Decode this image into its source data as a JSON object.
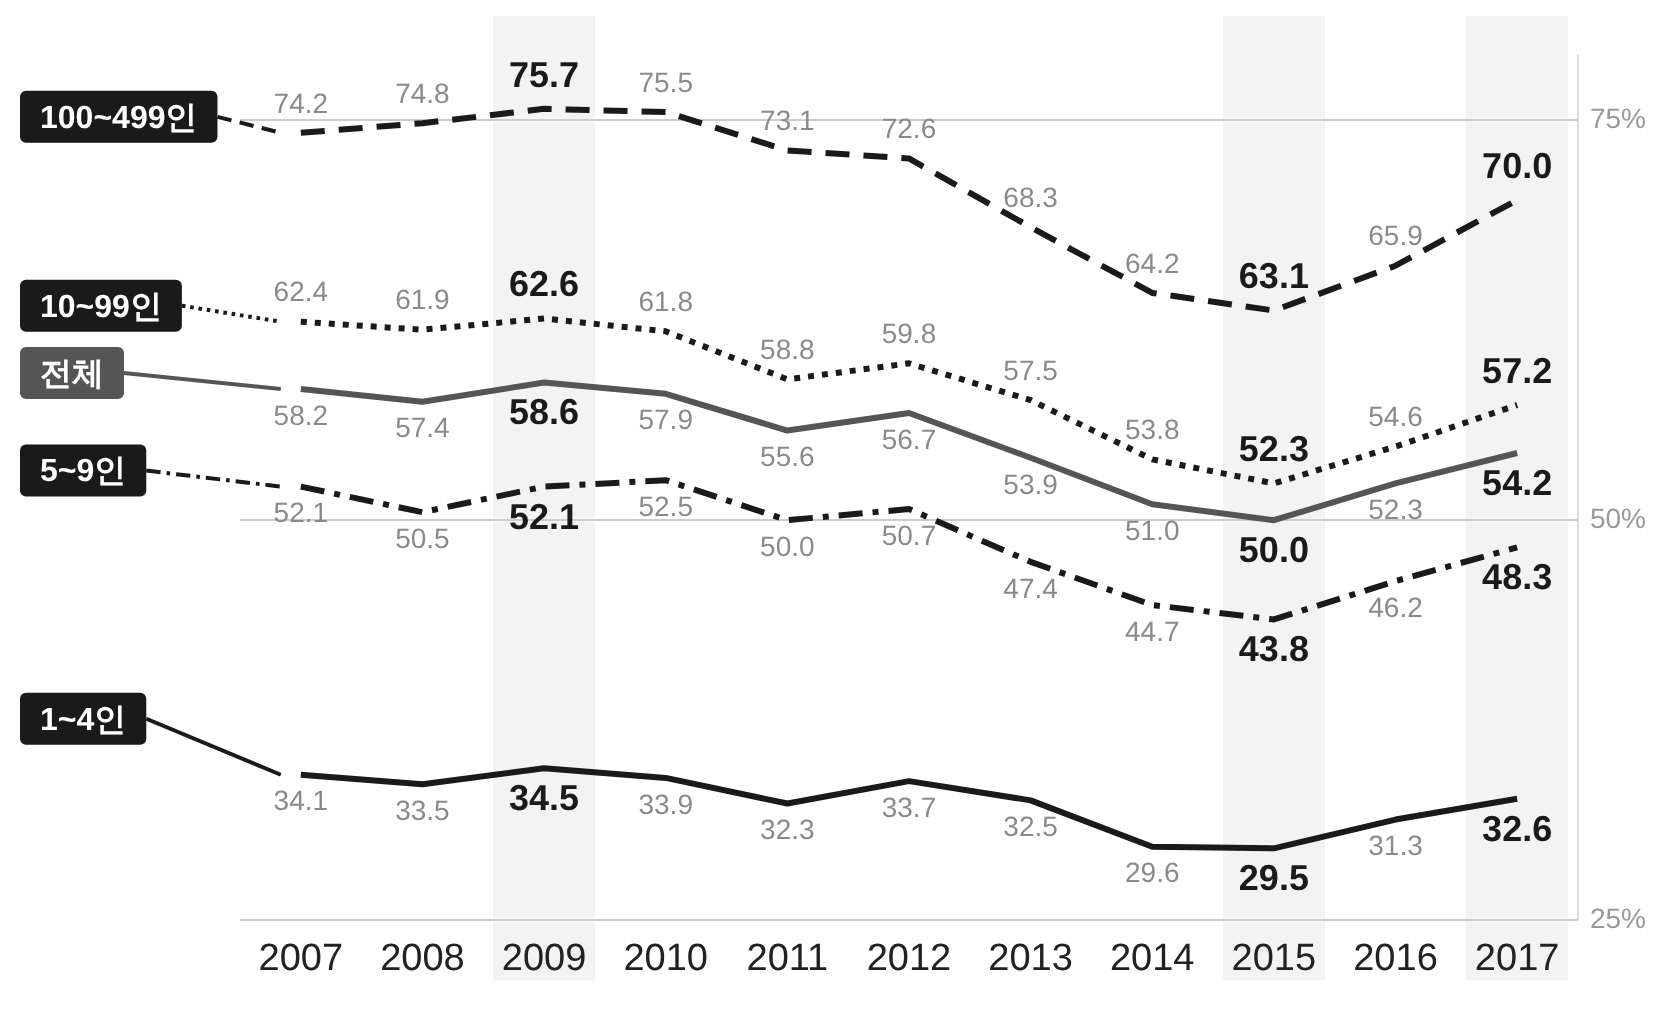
{
  "chart_data": {
    "type": "line",
    "categories": [
      "2007",
      "2008",
      "2009",
      "2010",
      "2011",
      "2012",
      "2013",
      "2014",
      "2015",
      "2016",
      "2017"
    ],
    "series": [
      {
        "name": "100~499인",
        "color": "#1a1a1a",
        "line_style": "dashed",
        "values": [
          74.2,
          74.8,
          75.7,
          75.5,
          73.1,
          72.6,
          68.3,
          64.2,
          63.1,
          65.9,
          70.0
        ],
        "value_labels": [
          "74.2",
          "74.8",
          "75.7",
          "75.5",
          "73.1",
          "72.6",
          "68.3",
          "64.2",
          "63.1",
          "65.9",
          "70.0"
        ]
      },
      {
        "name": "10~99인",
        "color": "#1a1a1a",
        "line_style": "dotted",
        "values": [
          62.4,
          61.9,
          62.6,
          61.8,
          58.8,
          59.8,
          57.5,
          53.8,
          52.3,
          54.6,
          57.2
        ],
        "value_labels": [
          "62.4",
          "61.9",
          "62.6",
          "61.8",
          "58.8",
          "59.8",
          "57.5",
          "53.8",
          "52.3",
          "54.6",
          "57.2"
        ]
      },
      {
        "name": "전체",
        "color": "#555555",
        "line_style": "solid",
        "values": [
          58.2,
          57.4,
          58.6,
          57.9,
          55.6,
          56.7,
          53.9,
          51.0,
          50.0,
          52.3,
          54.2
        ],
        "value_labels": [
          "58.2",
          "57.4",
          "58.6",
          "57.9",
          "55.6",
          "56.7",
          "53.9",
          "51.0",
          "50.0",
          "52.3",
          "54.2"
        ]
      },
      {
        "name": "5~9인",
        "color": "#1a1a1a",
        "line_style": "dashdot",
        "values": [
          52.1,
          50.5,
          52.1,
          52.5,
          50.0,
          50.7,
          47.4,
          44.7,
          43.8,
          46.2,
          48.3
        ],
        "value_labels": [
          "52.1",
          "50.5",
          "52.1",
          "52.5",
          "50.0",
          "50.7",
          "47.4",
          "44.7",
          "43.8",
          "46.2",
          "48.3"
        ]
      },
      {
        "name": "1~4인",
        "color": "#1a1a1a",
        "line_style": "solid",
        "values": [
          34.1,
          33.5,
          34.5,
          33.9,
          32.3,
          33.7,
          32.5,
          29.6,
          29.5,
          31.3,
          32.6
        ],
        "value_labels": [
          "34.1",
          "33.5",
          "34.5",
          "33.9",
          "32.3",
          "33.7",
          "32.5",
          "29.6",
          "29.5",
          "31.3",
          "32.6"
        ]
      }
    ],
    "ylim": [
      25,
      79
    ],
    "yticks": [
      {
        "value": 25,
        "label": "25%"
      },
      {
        "value": 50,
        "label": "50%"
      },
      {
        "value": 75,
        "label": "75%"
      }
    ],
    "grid": "y",
    "legend": "left",
    "marker": "none",
    "bands": [
      {
        "axis": "x",
        "from": "2009",
        "to": "2009",
        "color": "#f3f3f3"
      },
      {
        "axis": "x",
        "from": "2015",
        "to": "2015",
        "color": "#f3f3f3"
      },
      {
        "axis": "x",
        "from": "2017",
        "to": "2017",
        "color": "#f3f3f3"
      }
    ]
  }
}
